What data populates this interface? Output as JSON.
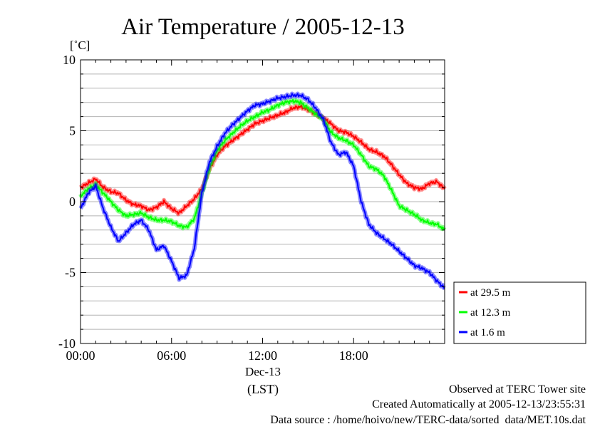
{
  "chart_data": {
    "type": "line",
    "title": "Air Temperature / 2005-12-13",
    "y_unit": "[˚C]",
    "ylim": [
      -10,
      10
    ],
    "y_ticks": [
      10,
      5,
      0,
      -5,
      -10
    ],
    "y_tick_labels": [
      "10",
      "5",
      "0",
      "-5",
      "-10"
    ],
    "xlim": [
      0,
      24
    ],
    "x_ticks": [
      0,
      6,
      12,
      18
    ],
    "x_tick_labels": [
      "00:00",
      "06:00",
      "12:00",
      "18:00"
    ],
    "x_date_label": "Dec-13",
    "x_zone_label": "(LST)",
    "grid": true,
    "legend_position": "bottom-right, outside plot",
    "series": [
      {
        "name": "at 29.5 m",
        "color": "#ff0000",
        "x": [
          0,
          0.5,
          1,
          1.5,
          2,
          2.5,
          3,
          3.5,
          4,
          4.5,
          5,
          5.5,
          6,
          6.5,
          7,
          7.5,
          8,
          8.5,
          9,
          9.5,
          10,
          10.5,
          11,
          11.5,
          12,
          12.5,
          13,
          13.5,
          14,
          14.5,
          15,
          15.5,
          16,
          16.5,
          17,
          17.5,
          18,
          18.5,
          19,
          19.5,
          20,
          20.5,
          21,
          21.5,
          22,
          22.5,
          23,
          23.5,
          24
        ],
        "y": [
          1.0,
          1.3,
          1.6,
          1.0,
          0.7,
          0.6,
          0.1,
          -0.2,
          -0.3,
          -0.6,
          -0.4,
          0.0,
          -0.5,
          -0.8,
          -0.3,
          0.2,
          0.9,
          2.3,
          3.3,
          3.9,
          4.3,
          4.7,
          5.1,
          5.5,
          5.7,
          5.9,
          6.1,
          6.3,
          6.6,
          6.7,
          6.5,
          6.2,
          5.9,
          5.5,
          5.0,
          4.9,
          4.6,
          4.2,
          3.7,
          3.5,
          3.2,
          2.6,
          1.9,
          1.3,
          1.0,
          0.9,
          1.3,
          1.4,
          0.9
        ]
      },
      {
        "name": "at 12.3 m",
        "color": "#00ff00",
        "x": [
          0,
          0.5,
          1,
          1.5,
          2,
          2.5,
          3,
          3.5,
          4,
          4.5,
          5,
          5.5,
          6,
          6.5,
          7,
          7.5,
          8,
          8.5,
          9,
          9.5,
          10,
          10.5,
          11,
          11.5,
          12,
          12.5,
          13,
          13.5,
          14,
          14.5,
          15,
          15.5,
          16,
          16.5,
          17,
          17.5,
          18,
          18.5,
          19,
          19.5,
          20,
          20.5,
          21,
          21.5,
          22,
          22.5,
          23,
          23.5,
          24
        ],
        "y": [
          0.4,
          0.9,
          1.2,
          0.6,
          0.0,
          -0.6,
          -1.0,
          -0.9,
          -0.8,
          -1.1,
          -1.3,
          -1.3,
          -1.4,
          -1.7,
          -1.8,
          -1.2,
          0.6,
          2.4,
          3.6,
          4.3,
          4.8,
          5.3,
          5.7,
          6.0,
          6.3,
          6.5,
          6.8,
          7.0,
          7.1,
          7.0,
          6.6,
          6.2,
          5.8,
          4.9,
          4.5,
          4.3,
          4.0,
          3.3,
          2.5,
          2.3,
          1.8,
          0.8,
          -0.3,
          -0.6,
          -0.9,
          -1.3,
          -1.5,
          -1.6,
          -2.0
        ]
      },
      {
        "name": "at 1.6 m",
        "color": "#0000ff",
        "x": [
          0,
          0.5,
          1,
          1.5,
          2,
          2.5,
          3,
          3.5,
          4,
          4.5,
          5,
          5.5,
          6,
          6.5,
          7,
          7.5,
          8,
          8.5,
          9,
          9.5,
          10,
          10.5,
          11,
          11.5,
          12,
          12.5,
          13,
          13.5,
          14,
          14.5,
          15,
          15.5,
          16,
          16.5,
          17,
          17.5,
          18,
          18.5,
          19,
          19.5,
          20,
          20.5,
          21,
          21.5,
          22,
          22.5,
          23,
          23.5,
          24
        ],
        "y": [
          -0.5,
          0.6,
          1.1,
          -0.5,
          -1.8,
          -2.8,
          -2.2,
          -1.6,
          -1.3,
          -2.0,
          -3.4,
          -3.1,
          -4.2,
          -5.4,
          -5.2,
          -3.3,
          0.6,
          2.8,
          3.9,
          4.8,
          5.4,
          5.9,
          6.4,
          6.8,
          6.9,
          7.1,
          7.3,
          7.4,
          7.5,
          7.5,
          7.2,
          6.6,
          5.8,
          4.2,
          3.3,
          3.5,
          2.5,
          0.0,
          -1.6,
          -2.2,
          -2.6,
          -3.0,
          -3.5,
          -4.0,
          -4.5,
          -4.7,
          -5.0,
          -5.6,
          -6.1
        ]
      }
    ]
  },
  "footer": {
    "line1": "Observed at TERC Tower site",
    "line2": "Created Automatically at 2005-12-13/23:55:31",
    "line3": "Data source : /home/hoivo/new/TERC-data/sorted_data/MET.10s.dat"
  }
}
